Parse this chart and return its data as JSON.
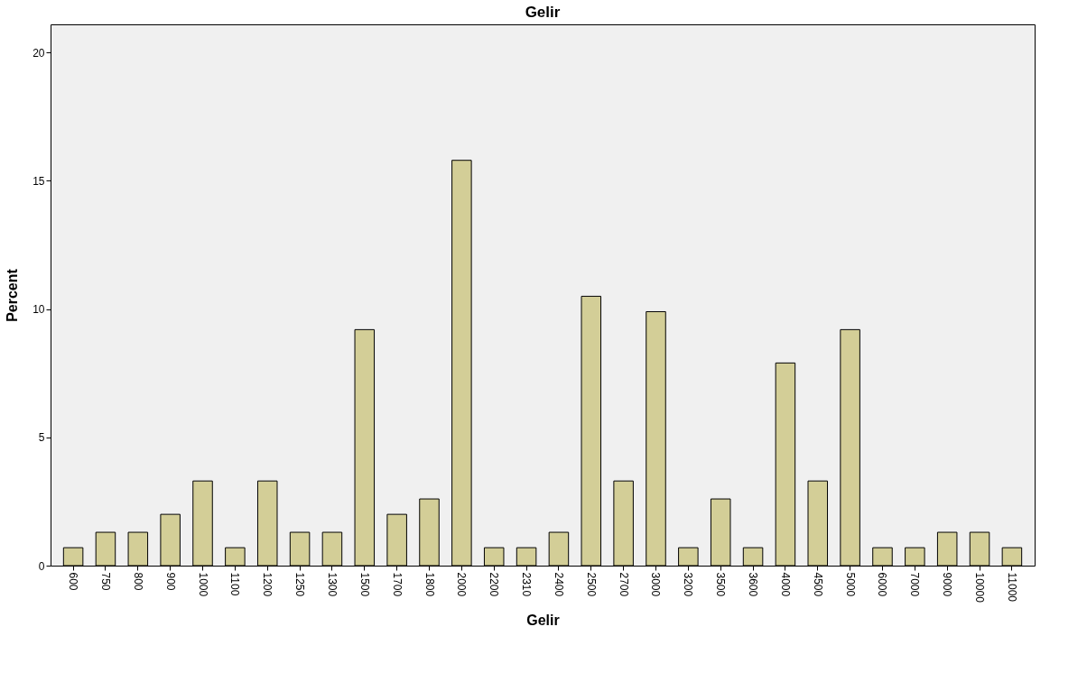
{
  "chart_data": {
    "type": "bar",
    "title": "Gelir",
    "xlabel": "Gelir",
    "ylabel": "Percent",
    "categories": [
      "600",
      "750",
      "800",
      "900",
      "1000",
      "1100",
      "1200",
      "1250",
      "1300",
      "1500",
      "1700",
      "1800",
      "2000",
      "2200",
      "2310",
      "2400",
      "2500",
      "2700",
      "3000",
      "3200",
      "3500",
      "3600",
      "4000",
      "4500",
      "5000",
      "6000",
      "7000",
      "9000",
      "10000",
      "11000"
    ],
    "values": [
      0.7,
      1.3,
      1.3,
      2.0,
      3.3,
      0.7,
      3.3,
      1.3,
      1.3,
      9.2,
      2.0,
      2.6,
      15.8,
      0.7,
      0.7,
      1.3,
      10.5,
      3.3,
      9.9,
      0.7,
      2.6,
      0.7,
      7.9,
      3.3,
      9.2,
      0.7,
      0.7,
      1.3,
      1.3,
      0.7
    ],
    "color": "#d3ce97",
    "ylim": [
      0,
      21.1
    ],
    "yticks": [
      0,
      5,
      10,
      15,
      20
    ],
    "grid": false
  }
}
